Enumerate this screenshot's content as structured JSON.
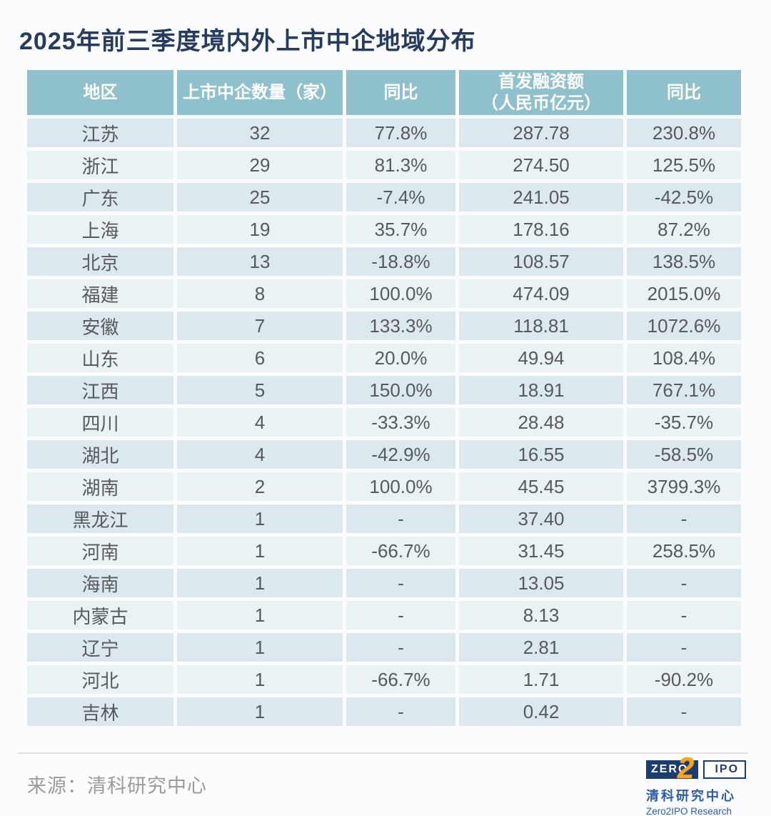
{
  "title": "2025年前三季度境内外上市中企地域分布",
  "chart_data": {
    "type": "table",
    "title": "2025年前三季度境内外上市中企地域分布",
    "columns": [
      "地区",
      "上市中企数量（家）",
      "同比",
      "首发融资额（人民币亿元）",
      "同比"
    ],
    "rows": [
      [
        "江苏",
        "32",
        "77.8%",
        "287.78",
        "230.8%"
      ],
      [
        "浙江",
        "29",
        "81.3%",
        "274.50",
        "125.5%"
      ],
      [
        "广东",
        "25",
        "-7.4%",
        "241.05",
        "-42.5%"
      ],
      [
        "上海",
        "19",
        "35.7%",
        "178.16",
        "87.2%"
      ],
      [
        "北京",
        "13",
        "-18.8%",
        "108.57",
        "138.5%"
      ],
      [
        "福建",
        "8",
        "100.0%",
        "474.09",
        "2015.0%"
      ],
      [
        "安徽",
        "7",
        "133.3%",
        "118.81",
        "1072.6%"
      ],
      [
        "山东",
        "6",
        "20.0%",
        "49.94",
        "108.4%"
      ],
      [
        "江西",
        "5",
        "150.0%",
        "18.91",
        "767.1%"
      ],
      [
        "四川",
        "4",
        "-33.3%",
        "28.48",
        "-35.7%"
      ],
      [
        "湖北",
        "4",
        "-42.9%",
        "16.55",
        "-58.5%"
      ],
      [
        "湖南",
        "2",
        "100.0%",
        "45.45",
        "3799.3%"
      ],
      [
        "黑龙江",
        "1",
        "-",
        "37.40",
        "-"
      ],
      [
        "河南",
        "1",
        "-66.7%",
        "31.45",
        "258.5%"
      ],
      [
        "海南",
        "1",
        "-",
        "13.05",
        "-"
      ],
      [
        "内蒙古",
        "1",
        "-",
        "8.13",
        "-"
      ],
      [
        "辽宁",
        "1",
        "-",
        "2.81",
        "-"
      ],
      [
        "河北",
        "1",
        "-66.7%",
        "1.71",
        "-90.2%"
      ],
      [
        "吉林",
        "1",
        "-",
        "0.42",
        "-"
      ]
    ],
    "source": "来源：清科研究中心"
  },
  "table": {
    "headers": [
      "地区",
      "上市中企数量（家）",
      "同比",
      "首发融资额\n（人民币亿元）",
      "同比"
    ]
  },
  "footer": {
    "source": "来源：清科研究中心"
  },
  "logo": {
    "zero": "ZERO",
    "two": "2",
    "ipo": "IPO",
    "cn": "清科研究中心",
    "en": "Zero2IPO Research"
  },
  "colors": {
    "title_text": "#263c5f",
    "header_bg": "#8fc1cc",
    "header_text": "#ffffff",
    "row_odd_bg": "#dbe8ed",
    "row_even_bg": "#e9f2f5",
    "cell_text": "#58595b",
    "source_text": "#9b9b9b",
    "logo_navy": "#1c3d72",
    "logo_orange": "#f6a61d",
    "logo_blue": "#2b5cab",
    "page_bg": "#fbfcfd"
  }
}
